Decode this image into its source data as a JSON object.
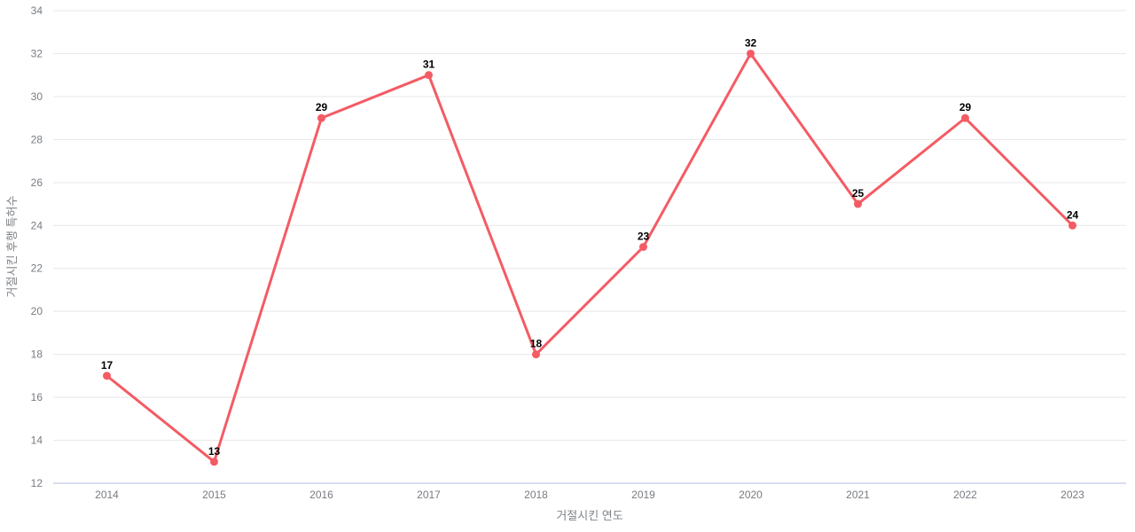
{
  "chart_data": {
    "type": "line",
    "categories": [
      "2014",
      "2015",
      "2016",
      "2017",
      "2018",
      "2019",
      "2020",
      "2021",
      "2022",
      "2023"
    ],
    "values": [
      17,
      13,
      29,
      31,
      18,
      23,
      32,
      25,
      29,
      24
    ],
    "point_labels": [
      "17",
      "13",
      "29",
      "31",
      "18",
      "23",
      "32",
      "25",
      "29",
      "24"
    ],
    "title": "",
    "xlabel": "거절시킨 연도",
    "ylabel": "거절시킨 후행 특허수",
    "ylim": [
      12,
      34
    ],
    "ytick_step": 2,
    "yticks": [
      12,
      14,
      16,
      18,
      20,
      22,
      24,
      26,
      28,
      30,
      32,
      34
    ],
    "grid": "horizontal-only",
    "legend": "none",
    "colors": {
      "line": "#f45b64",
      "marker": "#f45b64",
      "gridline": "#e7e7e7",
      "axis_line": "#ccd4eb",
      "tick_text": "#777b81",
      "axis_title_text": "#7f8389",
      "point_label_text": "#000000",
      "background": "#ffffff"
    }
  }
}
